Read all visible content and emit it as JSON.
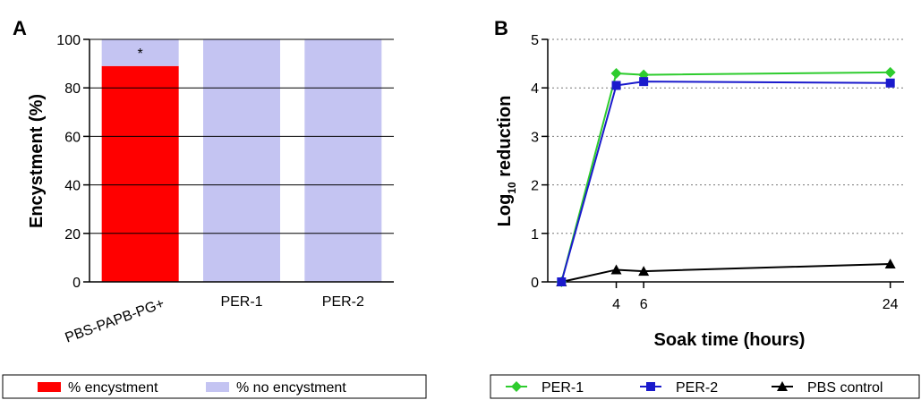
{
  "chart_data": [
    {
      "panel": "A",
      "type": "bar",
      "stacked": true,
      "categories": [
        "PBS-PAPB-PG+",
        "PER-1",
        "PER-2"
      ],
      "series": [
        {
          "name": "% encystment",
          "values": [
            89,
            0,
            0
          ],
          "color": "#ff0000"
        },
        {
          "name": "% no encystment",
          "values": [
            11,
            100,
            100
          ],
          "color": "#c4c4f2"
        }
      ],
      "annotations": [
        {
          "category": "PBS-PAPB-PG+",
          "text": "*"
        }
      ],
      "xlabel": "",
      "ylabel": "Encystment (%)",
      "ylim": [
        0,
        100
      ],
      "yticks": [
        0,
        20,
        40,
        60,
        80,
        100
      ],
      "grid": false,
      "legend_position": "bottom"
    },
    {
      "panel": "B",
      "type": "line",
      "x": [
        0,
        4,
        6,
        24
      ],
      "series": [
        {
          "name": "PER-1",
          "values": [
            0,
            4.3,
            4.27,
            4.32
          ],
          "color": "#2ecc2e",
          "marker": "diamond"
        },
        {
          "name": "PER-2",
          "values": [
            0,
            4.05,
            4.13,
            4.1
          ],
          "color": "#1a1acc",
          "marker": "square"
        },
        {
          "name": "PBS control",
          "values": [
            0,
            0.25,
            0.22,
            0.37
          ],
          "color": "#000000",
          "marker": "triangle"
        }
      ],
      "xlabel": "Soak time (hours)",
      "ylabel_main": "Log",
      "ylabel_sub": "10",
      "ylabel_rest": " reduction",
      "xlim": [
        -1,
        25
      ],
      "ylim": [
        0,
        5
      ],
      "xticks": [
        4,
        6,
        24
      ],
      "yticks": [
        0,
        1,
        2,
        3,
        4,
        5
      ],
      "grid": "horizontal dotted",
      "legend_position": "bottom"
    }
  ]
}
